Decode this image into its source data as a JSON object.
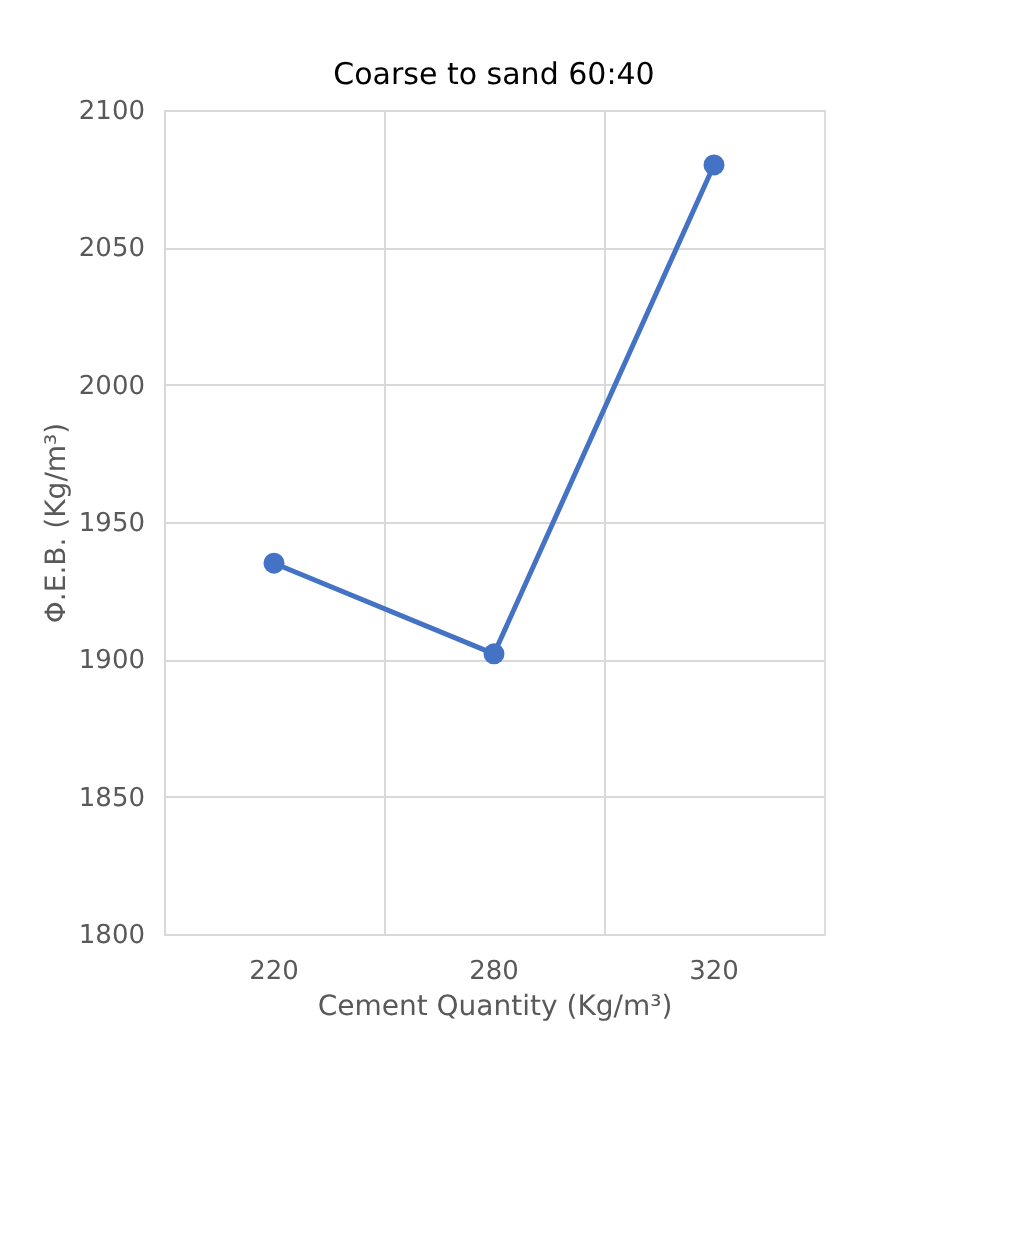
{
  "chart_data": {
    "type": "line",
    "title": "Coarse to sand 60:40",
    "xlabel": "Cement Quantity (Kg/m³)",
    "ylabel": "Φ.E.B. (Kg/m³)",
    "categories": [
      "220",
      "280",
      "320"
    ],
    "series": [
      {
        "color": "#4472c4",
        "values": [
          1935,
          1902,
          2080
        ]
      }
    ],
    "ylim": [
      1800,
      2100
    ],
    "yticks": [
      1800,
      1850,
      1900,
      1950,
      2000,
      2050,
      2100
    ],
    "grid": true,
    "marker": "circle",
    "line_style": "solid"
  }
}
